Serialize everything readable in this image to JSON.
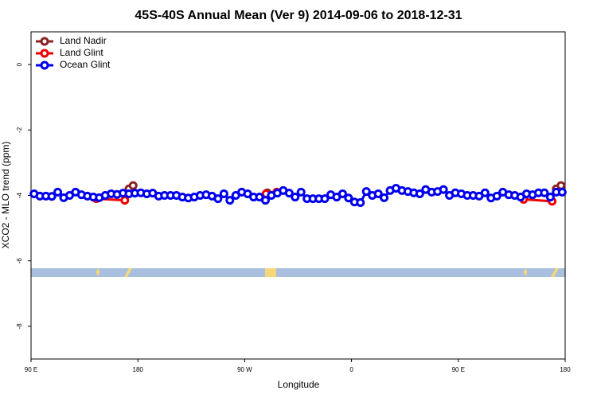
{
  "chart_data": {
    "type": "line",
    "title": "45S-40S Annual Mean (Ver 9)   2014-09-06 to 2018-12-31",
    "x_label": "Longitude",
    "y_label": "XCO2 - MLO trend (ppm)",
    "xlim": [
      90,
      540
    ],
    "ylim": [
      -9,
      1
    ],
    "xticks": [
      {
        "value": 90,
        "label": "90 E"
      },
      {
        "value": 180,
        "label": "180"
      },
      {
        "value": 270,
        "label": "90 W"
      },
      {
        "value": 360,
        "label": "0"
      },
      {
        "value": 450,
        "label": "90 E"
      },
      {
        "value": 540,
        "label": "180"
      }
    ],
    "yticks": [
      0,
      -2,
      -4,
      -6,
      -8
    ],
    "legend": "top-left",
    "series": [
      {
        "name": "Land Nadir",
        "color": "#8b2323",
        "x": [
          172.5,
          176,
          250,
          289,
          400,
          532.5,
          536.5
        ],
        "values": [
          -3.8,
          -3.7,
          null,
          -3.92,
          null,
          -3.8,
          -3.7
        ]
      },
      {
        "name": "Land Glint",
        "color": "#ee0000",
        "x": [
          145,
          169,
          200,
          288,
          297,
          400,
          505,
          529
        ],
        "values": [
          -4.1,
          -4.15,
          null,
          -3.95,
          -3.9,
          null,
          -4.12,
          -4.18
        ]
      },
      {
        "name": "Ocean Glint",
        "color": "#0000ee",
        "x": [
          92.5,
          97.5,
          102.5,
          107.5,
          112.5,
          117.5,
          122.5,
          127.5,
          132.5,
          137.5,
          142.5,
          147.5,
          152.5,
          157.5,
          162.5,
          167.5,
          172.5,
          177.5,
          182.5,
          187.5,
          192.5,
          197.5,
          202.5,
          207.5,
          212.5,
          217.5,
          222.5,
          227.5,
          232.5,
          237.5,
          242.5,
          247.5,
          252.5,
          257.5,
          262.5,
          267.5,
          272.5,
          277.5,
          282.5,
          287.5,
          292.5,
          297.5,
          302.5,
          307.5,
          312.5,
          317.5,
          322.5,
          327.5,
          332.5,
          337.5,
          342.5,
          347.5,
          352.5,
          357.5,
          362.5,
          367.5,
          372.5,
          377.5,
          382.5,
          387.5,
          392.5,
          397.5,
          402.5,
          407.5,
          412.5,
          417.5,
          422.5,
          427.5,
          432.5,
          437.5,
          442.5,
          447.5,
          452.5,
          457.5,
          462.5,
          467.5,
          472.5,
          477.5,
          482.5,
          487.5,
          492.5,
          497.5,
          502.5,
          507.5,
          512.5,
          517.5,
          522.5,
          527.5,
          532.5,
          537.5
        ],
        "values": [
          -3.95,
          -4.02,
          -4.02,
          -4.03,
          -3.9,
          -4.07,
          -4.0,
          -3.9,
          -3.98,
          -4.02,
          -4.05,
          -4.07,
          -4.0,
          -3.95,
          -3.97,
          -3.93,
          -3.95,
          -3.93,
          -3.92,
          -3.95,
          -3.93,
          -4.02,
          -4.0,
          -4.0,
          -4.0,
          -4.05,
          -4.08,
          -4.05,
          -4.0,
          -3.98,
          -4.02,
          -4.1,
          -3.95,
          -4.15,
          -4.0,
          -3.9,
          -3.95,
          -4.05,
          -4.05,
          -4.15,
          -4.0,
          -3.93,
          -3.85,
          -3.93,
          -4.05,
          -3.9,
          -4.1,
          -4.1,
          -4.1,
          -4.1,
          -3.98,
          -4.05,
          -3.95,
          -4.08,
          -4.2,
          -4.22,
          -3.88,
          -4.0,
          -3.95,
          -4.07,
          -3.85,
          -3.78,
          -3.85,
          -3.88,
          -3.92,
          -3.95,
          -3.82,
          -3.9,
          -3.88,
          -3.82,
          -4.0,
          -3.92,
          -3.95,
          -4.0,
          -4.0,
          -4.02,
          -3.92,
          -4.08,
          -4.02,
          -3.9,
          -3.98,
          -4.0,
          -4.05,
          -3.95,
          -3.98,
          -3.92,
          -3.92,
          -4.05,
          -3.9,
          -3.9
        ]
      }
    ]
  }
}
